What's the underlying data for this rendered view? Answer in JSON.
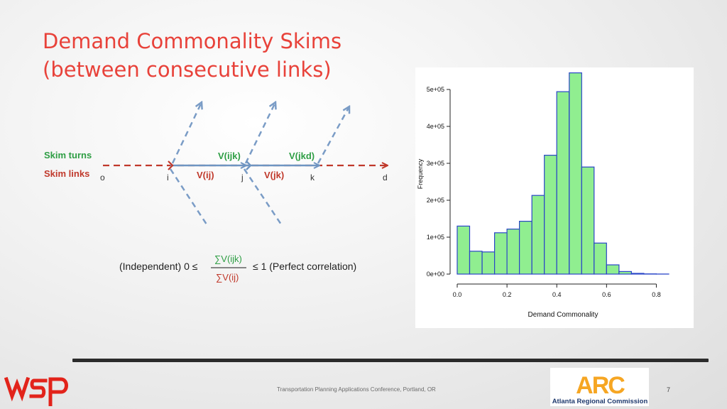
{
  "slide": {
    "title_line1": "Demand Commonality Skims",
    "title_line2": "(between consecutive links)",
    "footer": "Transportation Planning Applications Conference, Portland, OR",
    "page_number": "7"
  },
  "diagram": {
    "legend": {
      "turns": "Skim turns",
      "links": "Skim links"
    },
    "nodes": [
      "o",
      "i",
      "j",
      "k",
      "d"
    ],
    "link_labels": {
      "ij": "V(ij)",
      "jk": "V(jk)"
    },
    "turn_labels": {
      "ijk": "V(ijk)",
      "jkd": "V(jkd)"
    },
    "colors": {
      "links": "#c0392b",
      "turns": "#2e9e44",
      "arrows": "#7a9cc6",
      "flow": "#6f95c2"
    }
  },
  "formula": {
    "left": "(Independent) 0 ≤",
    "numerator": "∑V(ijk)",
    "denominator": "∑V(ij)",
    "right": "≤ 1 (Perfect correlation)"
  },
  "chart_data": {
    "type": "bar",
    "title": "",
    "xlabel": "Demand Commonality",
    "ylabel": "Frequency",
    "bin_edges": [
      0,
      0.05,
      0.1,
      0.15,
      0.2,
      0.25,
      0.3,
      0.35,
      0.4,
      0.45,
      0.5,
      0.55,
      0.6,
      0.65,
      0.7,
      0.75,
      0.8,
      0.85
    ],
    "values": [
      130000,
      62000,
      60000,
      112000,
      122000,
      143000,
      213000,
      322000,
      494000,
      545000,
      290000,
      84000,
      25000,
      7000,
      2000,
      500,
      200
    ],
    "xlim": [
      0,
      0.85
    ],
    "ylim": [
      0,
      500000
    ],
    "x_ticks": [
      0.0,
      0.2,
      0.4,
      0.6,
      0.8
    ],
    "x_tick_labels": [
      "0.0",
      "0.2",
      "0.4",
      "0.6",
      "0.8"
    ],
    "y_ticks": [
      0,
      100000,
      200000,
      300000,
      400000,
      500000
    ],
    "y_tick_labels": [
      "0e+00",
      "1e+05",
      "2e+05",
      "3e+05",
      "4e+05",
      "5e+05"
    ],
    "colors": {
      "fill": "#90ee90",
      "stroke": "#2a45c8"
    }
  },
  "logos": {
    "wsp": "wsp",
    "arc_letters": "ARC",
    "arc_caption": "Atlanta Regional Commission",
    "colors": {
      "wsp": "#e2231a",
      "arc_orange": "#f6a623",
      "arc_text": "#1f3a6e"
    }
  }
}
